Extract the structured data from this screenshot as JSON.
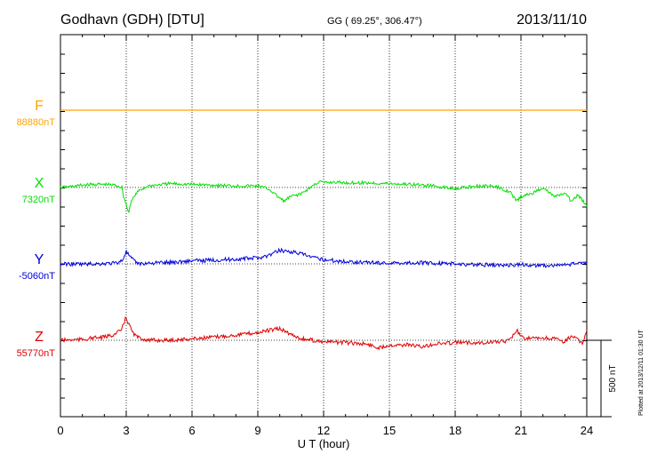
{
  "header": {
    "station": "Godhavn (GDH)  [DTU]",
    "coords": "GG ( 69.25°, 306.47°)",
    "date": "2013/11/10"
  },
  "footer": {
    "xlabel": "U T (hour)",
    "plotted": "Plotted at 2013/12/11 01:30 UT"
  },
  "scale_bar": {
    "label": "500 nT",
    "value_nT": 500
  },
  "colors": {
    "F": "#ffa500",
    "X": "#00e000",
    "Y": "#0000dd",
    "Z": "#e00000",
    "axis": "#000000",
    "grid": "#000000"
  },
  "chart_data": {
    "type": "line",
    "title": "Godhavn (GDH)  [DTU]",
    "xlabel": "U T (hour)",
    "xlim": [
      0,
      24
    ],
    "xticks": [
      "0",
      "3",
      "6",
      "9",
      "12",
      "15",
      "18",
      "21",
      "24"
    ],
    "grid": true,
    "nT_per_division_reference": 500,
    "series": [
      {
        "name": "F",
        "baseline_label": "88880nT",
        "baseline_nT": 88880,
        "x": [
          0,
          24
        ],
        "y": [
          88880,
          88880
        ]
      },
      {
        "name": "X",
        "baseline_label": "7320nT",
        "baseline_nT": 7320,
        "x": [
          0,
          0.5,
          1,
          1.5,
          2,
          2.5,
          2.8,
          2.9,
          3.0,
          3.1,
          3.2,
          3.4,
          3.6,
          4,
          5,
          6,
          7,
          8,
          9,
          9.5,
          10,
          10.2,
          10.5,
          11,
          11.5,
          11.8,
          12,
          12.5,
          13,
          14,
          15,
          16,
          17,
          17.5,
          18,
          18.5,
          19,
          19.5,
          20,
          20.5,
          20.7,
          20.8,
          21,
          21.5,
          22,
          22.5,
          23,
          23.3,
          23.6,
          24
        ],
        "y": [
          7320,
          7325,
          7335,
          7340,
          7340,
          7335,
          7320,
          7250,
          7210,
          7150,
          7220,
          7270,
          7300,
          7330,
          7345,
          7340,
          7335,
          7330,
          7330,
          7310,
          7250,
          7230,
          7260,
          7280,
          7330,
          7360,
          7350,
          7355,
          7350,
          7350,
          7345,
          7340,
          7330,
          7320,
          7315,
          7320,
          7330,
          7330,
          7320,
          7290,
          7250,
          7230,
          7260,
          7280,
          7320,
          7260,
          7280,
          7230,
          7270,
          7200
        ]
      },
      {
        "name": "Y",
        "baseline_label": "-5060nT",
        "baseline_nT": -5060,
        "x": [
          0,
          1,
          2,
          2.5,
          2.8,
          3.0,
          3.2,
          3.4,
          3.6,
          4,
          5,
          6,
          7,
          8,
          9,
          9.5,
          10,
          10.5,
          11,
          11.5,
          12,
          12.5,
          13,
          14,
          15,
          16,
          17,
          18,
          19,
          20,
          21,
          22,
          23,
          23.5,
          24
        ],
        "y": [
          -5060,
          -5062,
          -5058,
          -5055,
          -5040,
          -4980,
          -5020,
          -5045,
          -5060,
          -5055,
          -5050,
          -5040,
          -5035,
          -5030,
          -5020,
          -5005,
          -4970,
          -4980,
          -4995,
          -5020,
          -5030,
          -5040,
          -5045,
          -5050,
          -5055,
          -5052,
          -5055,
          -5060,
          -5065,
          -5070,
          -5065,
          -5072,
          -5068,
          -5060,
          -5050
        ]
      },
      {
        "name": "Z",
        "baseline_label": "55770nT",
        "baseline_nT": 55770,
        "x": [
          0,
          1,
          1.5,
          2,
          2.5,
          2.8,
          2.9,
          3.0,
          3.1,
          3.3,
          3.5,
          4,
          5,
          6,
          7,
          8,
          9,
          9.5,
          10,
          10.5,
          11,
          12,
          13,
          14,
          14.5,
          15,
          16,
          16.5,
          17,
          18,
          19,
          20,
          20.5,
          20.8,
          21,
          21.5,
          22,
          22.5,
          23,
          23.3,
          23.6,
          23.8,
          24
        ],
        "y": [
          55770,
          55775,
          55785,
          55790,
          55810,
          55840,
          55890,
          55920,
          55880,
          55820,
          55790,
          55770,
          55770,
          55780,
          55790,
          55805,
          55820,
          55835,
          55845,
          55810,
          55780,
          55760,
          55755,
          55745,
          55720,
          55740,
          55740,
          55725,
          55745,
          55755,
          55755,
          55760,
          55770,
          55840,
          55790,
          55780,
          55785,
          55780,
          55760,
          55800,
          55770,
          55750,
          55830
        ]
      }
    ]
  }
}
